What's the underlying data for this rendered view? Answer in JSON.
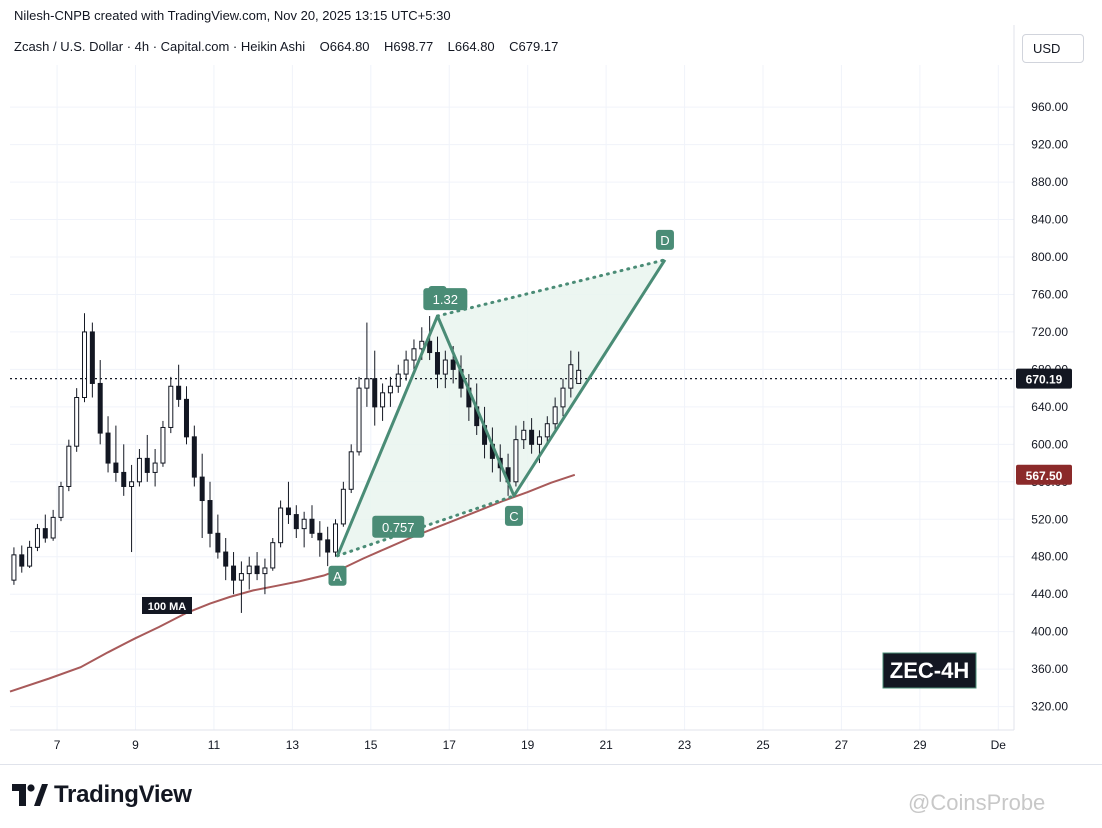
{
  "header": {
    "attribution": "Nilesh-CNPB created with TradingView.com, Nov 20, 2025 13:15 UTC+5:30"
  },
  "legend": {
    "symbol": "Zcash / U.S. Dollar · 4h · Capital.com · Heikin Ashi",
    "open_label": "O",
    "open": "664.80",
    "high_label": "H",
    "high": "698.77",
    "low_label": "L",
    "low": "664.80",
    "close_label": "C",
    "close": "679.17"
  },
  "currency_button": "USD",
  "brand": {
    "name": "TradingView"
  },
  "watermark": "@CoinsProbe",
  "colors": {
    "up": "#ffffff",
    "down": "#131722",
    "pattern": "#4a8c76",
    "pattern_fill": "#e9f5ee",
    "ma": "#a85a5a",
    "price_badge": "#131722",
    "ma_badge": "#8b2a2a",
    "ticker_bg": "#131722"
  },
  "chart_data": {
    "type": "candlestick",
    "title": "ZEC-4H",
    "y_axis": {
      "ticks": [
        "320.00",
        "360.00",
        "400.00",
        "440.00",
        "480.00",
        "520.00",
        "560.00",
        "600.00",
        "640.00",
        "680.00",
        "720.00",
        "760.00",
        "800.00",
        "840.00",
        "880.00",
        "920.00",
        "960.00"
      ],
      "ylim": [
        295,
        1005
      ]
    },
    "x_axis": {
      "ticks": [
        "7",
        "9",
        "11",
        "13",
        "15",
        "17",
        "19",
        "21",
        "23",
        "25",
        "27",
        "29",
        "De"
      ],
      "tick_days": [
        7,
        9,
        11,
        13,
        15,
        17,
        19,
        21,
        23,
        25,
        27,
        29,
        31
      ],
      "xlim": [
        5.8,
        31.4
      ]
    },
    "current_price": {
      "value": 670.19,
      "label": "670.19"
    },
    "ma": {
      "name": "100 MA",
      "last_label": "567.50",
      "points": [
        [
          5.8,
          336
        ],
        [
          6.8,
          350
        ],
        [
          7.6,
          362
        ],
        [
          8.3,
          378
        ],
        [
          9.0,
          393
        ],
        [
          9.6,
          405
        ],
        [
          10.3,
          420
        ],
        [
          10.9,
          430
        ],
        [
          11.4,
          437
        ],
        [
          12.0,
          444
        ],
        [
          12.6,
          449
        ],
        [
          13.2,
          454
        ],
        [
          13.8,
          460
        ],
        [
          14.3,
          468
        ],
        [
          14.8,
          478
        ],
        [
          15.4,
          489
        ],
        [
          16.0,
          500
        ],
        [
          16.6,
          510
        ],
        [
          17.2,
          520
        ],
        [
          17.8,
          530
        ],
        [
          18.4,
          540
        ],
        [
          19.0,
          549
        ],
        [
          19.6,
          559
        ],
        [
          20.2,
          567.5
        ]
      ]
    },
    "pattern": {
      "points": [
        {
          "label": "A",
          "x": 14.15,
          "y": 481
        },
        {
          "label": "B",
          "x": 16.7,
          "y": 737
        },
        {
          "label": "C",
          "x": 18.65,
          "y": 545
        },
        {
          "label": "D",
          "x": 22.5,
          "y": 797
        }
      ],
      "ratios": [
        {
          "label": "1.32",
          "x": 16.9,
          "y": 755
        },
        {
          "label": "0.757",
          "x": 15.7,
          "y": 512
        }
      ]
    },
    "candles": [
      {
        "x": 5.9,
        "o": 455,
        "h": 490,
        "l": 450,
        "c": 482
      },
      {
        "x": 6.1,
        "o": 482,
        "h": 492,
        "l": 463,
        "c": 470
      },
      {
        "x": 6.3,
        "o": 470,
        "h": 497,
        "l": 468,
        "c": 490
      },
      {
        "x": 6.5,
        "o": 490,
        "h": 515,
        "l": 486,
        "c": 510
      },
      {
        "x": 6.7,
        "o": 510,
        "h": 525,
        "l": 495,
        "c": 500
      },
      {
        "x": 6.9,
        "o": 500,
        "h": 530,
        "l": 497,
        "c": 522
      },
      {
        "x": 7.1,
        "o": 522,
        "h": 560,
        "l": 518,
        "c": 555
      },
      {
        "x": 7.3,
        "o": 555,
        "h": 605,
        "l": 550,
        "c": 598
      },
      {
        "x": 7.5,
        "o": 598,
        "h": 660,
        "l": 592,
        "c": 650
      },
      {
        "x": 7.7,
        "o": 650,
        "h": 740,
        "l": 645,
        "c": 720
      },
      {
        "x": 7.9,
        "o": 720,
        "h": 730,
        "l": 650,
        "c": 665
      },
      {
        "x": 8.1,
        "o": 665,
        "h": 690,
        "l": 600,
        "c": 612
      },
      {
        "x": 8.3,
        "o": 612,
        "h": 630,
        "l": 570,
        "c": 580
      },
      {
        "x": 8.5,
        "o": 580,
        "h": 620,
        "l": 560,
        "c": 570
      },
      {
        "x": 8.7,
        "o": 570,
        "h": 600,
        "l": 545,
        "c": 555
      },
      {
        "x": 8.9,
        "o": 555,
        "h": 578,
        "l": 485,
        "c": 560
      },
      {
        "x": 9.1,
        "o": 560,
        "h": 595,
        "l": 555,
        "c": 585
      },
      {
        "x": 9.3,
        "o": 585,
        "h": 610,
        "l": 560,
        "c": 570
      },
      {
        "x": 9.5,
        "o": 570,
        "h": 595,
        "l": 555,
        "c": 580
      },
      {
        "x": 9.7,
        "o": 580,
        "h": 625,
        "l": 576,
        "c": 618
      },
      {
        "x": 9.9,
        "o": 618,
        "h": 672,
        "l": 612,
        "c": 662
      },
      {
        "x": 10.1,
        "o": 662,
        "h": 685,
        "l": 640,
        "c": 648
      },
      {
        "x": 10.3,
        "o": 648,
        "h": 662,
        "l": 600,
        "c": 608
      },
      {
        "x": 10.5,
        "o": 608,
        "h": 620,
        "l": 555,
        "c": 565
      },
      {
        "x": 10.7,
        "o": 565,
        "h": 590,
        "l": 500,
        "c": 540
      },
      {
        "x": 10.9,
        "o": 540,
        "h": 560,
        "l": 490,
        "c": 505
      },
      {
        "x": 11.1,
        "o": 505,
        "h": 525,
        "l": 478,
        "c": 485
      },
      {
        "x": 11.3,
        "o": 485,
        "h": 500,
        "l": 455,
        "c": 470
      },
      {
        "x": 11.5,
        "o": 470,
        "h": 485,
        "l": 440,
        "c": 455
      },
      {
        "x": 11.7,
        "o": 455,
        "h": 475,
        "l": 420,
        "c": 462
      },
      {
        "x": 11.9,
        "o": 462,
        "h": 480,
        "l": 445,
        "c": 470
      },
      {
        "x": 12.1,
        "o": 470,
        "h": 485,
        "l": 455,
        "c": 462
      },
      {
        "x": 12.3,
        "o": 462,
        "h": 478,
        "l": 440,
        "c": 468
      },
      {
        "x": 12.5,
        "o": 468,
        "h": 500,
        "l": 465,
        "c": 495
      },
      {
        "x": 12.7,
        "o": 495,
        "h": 540,
        "l": 490,
        "c": 532
      },
      {
        "x": 12.9,
        "o": 532,
        "h": 560,
        "l": 515,
        "c": 525
      },
      {
        "x": 13.1,
        "o": 525,
        "h": 535,
        "l": 500,
        "c": 510
      },
      {
        "x": 13.3,
        "o": 510,
        "h": 528,
        "l": 490,
        "c": 520
      },
      {
        "x": 13.5,
        "o": 520,
        "h": 535,
        "l": 500,
        "c": 505
      },
      {
        "x": 13.7,
        "o": 505,
        "h": 518,
        "l": 480,
        "c": 498
      },
      {
        "x": 13.9,
        "o": 498,
        "h": 512,
        "l": 470,
        "c": 485
      },
      {
        "x": 14.1,
        "o": 485,
        "h": 520,
        "l": 480,
        "c": 515
      },
      {
        "x": 14.3,
        "o": 515,
        "h": 560,
        "l": 512,
        "c": 552
      },
      {
        "x": 14.5,
        "o": 552,
        "h": 600,
        "l": 548,
        "c": 592
      },
      {
        "x": 14.7,
        "o": 592,
        "h": 672,
        "l": 588,
        "c": 660
      },
      {
        "x": 14.9,
        "o": 660,
        "h": 730,
        "l": 640,
        "c": 670
      },
      {
        "x": 15.1,
        "o": 670,
        "h": 700,
        "l": 620,
        "c": 640
      },
      {
        "x": 15.3,
        "o": 640,
        "h": 665,
        "l": 625,
        "c": 655
      },
      {
        "x": 15.5,
        "o": 655,
        "h": 672,
        "l": 640,
        "c": 662
      },
      {
        "x": 15.7,
        "o": 662,
        "h": 685,
        "l": 655,
        "c": 675
      },
      {
        "x": 15.9,
        "o": 675,
        "h": 700,
        "l": 668,
        "c": 690
      },
      {
        "x": 16.1,
        "o": 690,
        "h": 712,
        "l": 680,
        "c": 702
      },
      {
        "x": 16.3,
        "o": 702,
        "h": 725,
        "l": 690,
        "c": 710
      },
      {
        "x": 16.5,
        "o": 710,
        "h": 737,
        "l": 690,
        "c": 698
      },
      {
        "x": 16.7,
        "o": 698,
        "h": 715,
        "l": 660,
        "c": 675
      },
      {
        "x": 16.9,
        "o": 675,
        "h": 700,
        "l": 660,
        "c": 690
      },
      {
        "x": 17.1,
        "o": 690,
        "h": 705,
        "l": 665,
        "c": 680
      },
      {
        "x": 17.3,
        "o": 680,
        "h": 695,
        "l": 650,
        "c": 660
      },
      {
        "x": 17.5,
        "o": 660,
        "h": 675,
        "l": 625,
        "c": 640
      },
      {
        "x": 17.7,
        "o": 640,
        "h": 665,
        "l": 610,
        "c": 620
      },
      {
        "x": 17.9,
        "o": 620,
        "h": 640,
        "l": 585,
        "c": 600
      },
      {
        "x": 18.1,
        "o": 600,
        "h": 618,
        "l": 570,
        "c": 585
      },
      {
        "x": 18.3,
        "o": 585,
        "h": 600,
        "l": 560,
        "c": 575
      },
      {
        "x": 18.5,
        "o": 575,
        "h": 590,
        "l": 545,
        "c": 560
      },
      {
        "x": 18.7,
        "o": 560,
        "h": 620,
        "l": 555,
        "c": 605
      },
      {
        "x": 18.9,
        "o": 605,
        "h": 625,
        "l": 595,
        "c": 615
      },
      {
        "x": 19.1,
        "o": 615,
        "h": 628,
        "l": 590,
        "c": 600
      },
      {
        "x": 19.3,
        "o": 600,
        "h": 615,
        "l": 580,
        "c": 608
      },
      {
        "x": 19.5,
        "o": 608,
        "h": 630,
        "l": 600,
        "c": 622
      },
      {
        "x": 19.7,
        "o": 622,
        "h": 650,
        "l": 615,
        "c": 640
      },
      {
        "x": 19.9,
        "o": 640,
        "h": 670,
        "l": 630,
        "c": 660
      },
      {
        "x": 20.1,
        "o": 660,
        "h": 700,
        "l": 650,
        "c": 685
      },
      {
        "x": 20.3,
        "o": 665,
        "h": 699,
        "l": 665,
        "c": 679
      }
    ]
  }
}
